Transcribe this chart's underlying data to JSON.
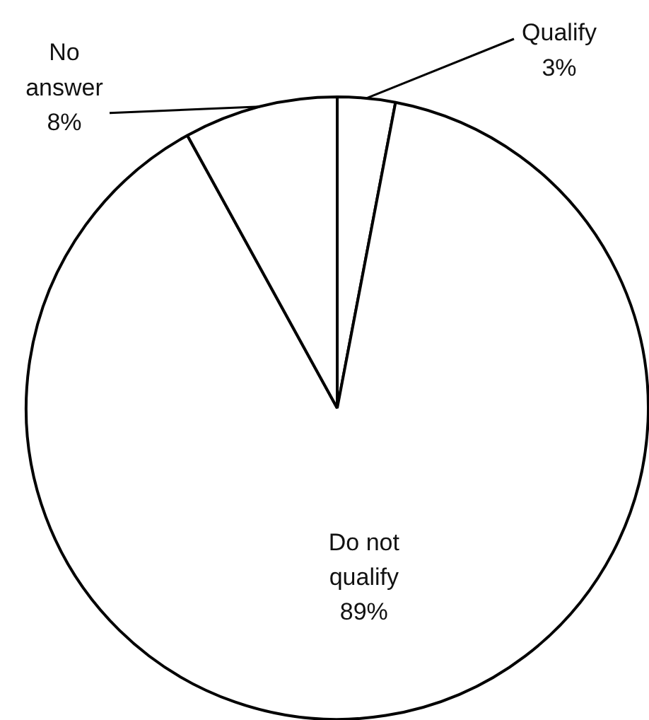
{
  "chart_data": {
    "type": "pie",
    "categories": [
      "Qualify",
      "Do not qualify",
      "No answer"
    ],
    "values": [
      3,
      89,
      8
    ],
    "colors": [
      "#ffffff",
      "#ffffff",
      "#ffffff"
    ],
    "value_labels": [
      "3%",
      "89%",
      "8%"
    ]
  }
}
